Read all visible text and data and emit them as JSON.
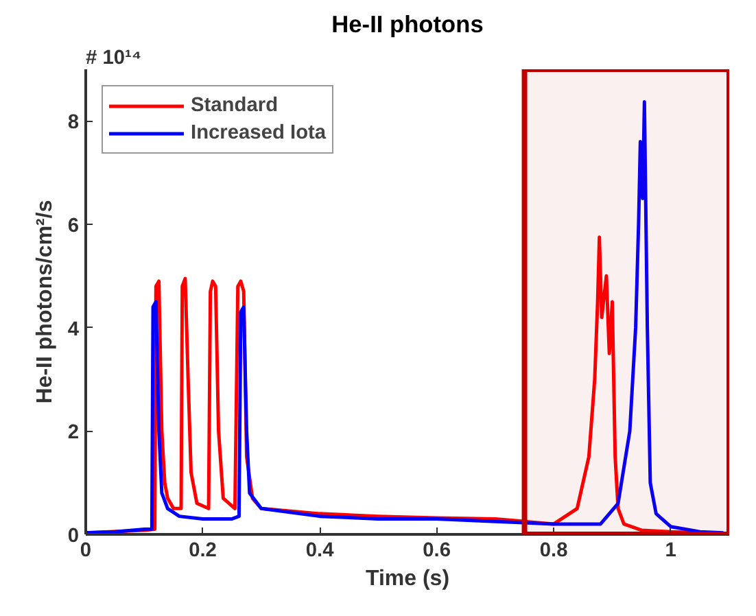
{
  "chart_data": {
    "type": "line",
    "title": "He-II photons",
    "xlabel": "Time (s)",
    "ylabel": "He-II photons/cm²/s",
    "annotations": [
      "# 10¹⁴"
    ],
    "xlim": [
      0,
      1.1
    ],
    "ylim": [
      0,
      9
    ],
    "xticks": [
      0,
      0.2,
      0.4,
      0.6,
      0.8,
      1
    ],
    "yticks": [
      0,
      2,
      4,
      6,
      8
    ],
    "grid": false,
    "legend": "top left",
    "marker": "none",
    "line_style": "solid",
    "bands": [
      {
        "axis": "x",
        "from": 0.75,
        "to": 1.1,
        "color": "#c00000"
      }
    ],
    "series": [
      {
        "name": "Standard",
        "color": "#ff0000",
        "x": [
          0,
          0.1,
          0.118,
          0.12,
          0.125,
          0.13,
          0.135,
          0.14,
          0.15,
          0.163,
          0.165,
          0.17,
          0.175,
          0.18,
          0.19,
          0.21,
          0.213,
          0.217,
          0.222,
          0.227,
          0.235,
          0.255,
          0.26,
          0.265,
          0.27,
          0.275,
          0.285,
          0.3,
          0.4,
          0.5,
          0.6,
          0.7,
          0.8,
          0.84,
          0.86,
          0.87,
          0.875,
          0.878,
          0.882,
          0.89,
          0.895,
          0.9,
          0.905,
          0.91,
          0.92,
          0.95,
          1.0,
          1.09
        ],
        "values": [
          0.03,
          0.08,
          0.1,
          4.8,
          4.9,
          2.0,
          1.0,
          0.7,
          0.5,
          0.5,
          4.8,
          4.95,
          3.0,
          1.2,
          0.6,
          0.5,
          4.7,
          4.9,
          4.8,
          2.0,
          0.7,
          0.5,
          4.8,
          4.9,
          4.7,
          1.5,
          0.7,
          0.5,
          0.4,
          0.35,
          0.32,
          0.3,
          0.2,
          0.5,
          1.5,
          3,
          4.5,
          5.75,
          4.2,
          5.0,
          3.5,
          4.5,
          1.5,
          0.5,
          0.2,
          0.08,
          0.05,
          0.02
        ]
      },
      {
        "name": "Increased Iota",
        "color": "#0000ff",
        "x": [
          0,
          0.05,
          0.1,
          0.113,
          0.115,
          0.12,
          0.125,
          0.13,
          0.14,
          0.16,
          0.2,
          0.25,
          0.262,
          0.265,
          0.27,
          0.275,
          0.28,
          0.3,
          0.4,
          0.5,
          0.6,
          0.7,
          0.8,
          0.88,
          0.91,
          0.93,
          0.94,
          0.945,
          0.948,
          0.952,
          0.955,
          0.96,
          0.965,
          0.975,
          1.0,
          1.05,
          1.09
        ],
        "values": [
          0.03,
          0.05,
          0.1,
          0.1,
          4.4,
          4.5,
          2.0,
          0.8,
          0.5,
          0.35,
          0.3,
          0.3,
          0.35,
          4.3,
          4.4,
          2.0,
          0.8,
          0.5,
          0.35,
          0.3,
          0.3,
          0.25,
          0.2,
          0.2,
          0.6,
          2,
          4,
          6,
          7.6,
          6.5,
          8.37,
          4,
          1,
          0.4,
          0.15,
          0.05,
          0.03
        ]
      }
    ]
  }
}
